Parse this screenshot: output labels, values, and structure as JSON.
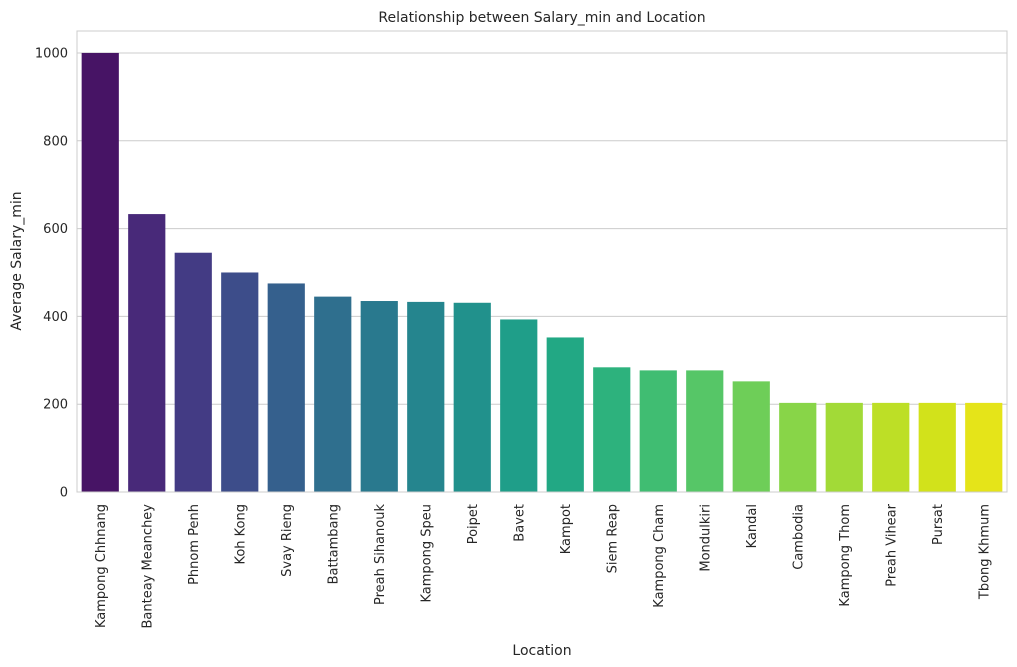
{
  "chart_data": {
    "type": "bar",
    "title": "Relationship between Salary_min and Location",
    "xlabel": "Location",
    "ylabel": "Average Salary_min",
    "ylim": [
      0,
      1050
    ],
    "yticks": [
      0,
      200,
      400,
      600,
      800,
      1000
    ],
    "grid": true,
    "categories": [
      "Kampong Chhnang",
      "Banteay Meanchey",
      "Phnom Penh",
      "Koh Kong",
      "Svay Rieng",
      "Battambang",
      "Preah Sihanouk",
      "Kampong Speu",
      "Poipet",
      "Bavet",
      "Kampot",
      "Siem Reap",
      "Kampong Cham",
      "Mondulkiri",
      "Kandal",
      "Cambodia",
      "Kampong Thom",
      "Preah Vihear",
      "Pursat",
      "Tbong Khmum"
    ],
    "values": [
      1000,
      633,
      545,
      500,
      475,
      445,
      435,
      433,
      431,
      393,
      352,
      284,
      277,
      277,
      252,
      203,
      203,
      203,
      203,
      203
    ],
    "colors": [
      "#471465",
      "#482979",
      "#433b84",
      "#3d4d8a",
      "#35608d",
      "#2f6f8e",
      "#29798e",
      "#25858e",
      "#21918c",
      "#1f9e89",
      "#22a884",
      "#2db27d",
      "#40bd72",
      "#56c667",
      "#6ece58",
      "#88d548",
      "#a2da37",
      "#bddf26",
      "#d2e21b",
      "#e5e419"
    ]
  }
}
